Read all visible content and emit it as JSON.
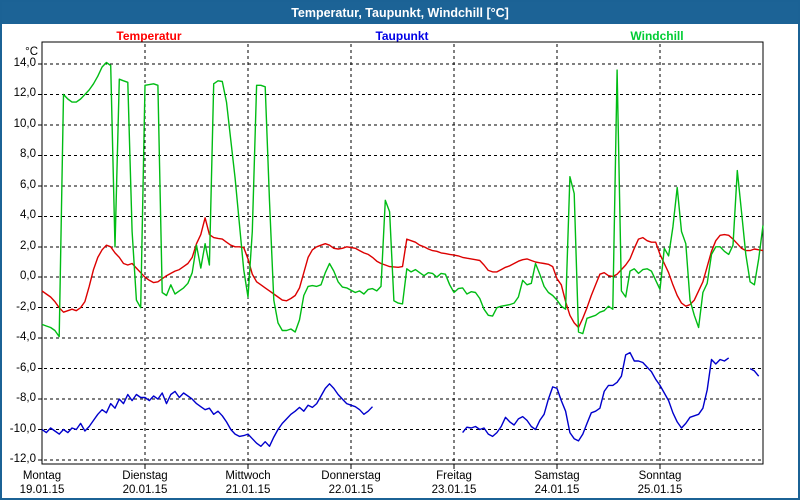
{
  "window": {
    "title": "Temperatur, Taupunkt, Windchill [°C]"
  },
  "legend": [
    {
      "label": "Temperatur",
      "color": "#ff0000"
    },
    {
      "label": "Taupunkt",
      "color": "#0000e6"
    },
    {
      "label": "Windchill",
      "color": "#00cc33"
    }
  ],
  "axes": {
    "y_unit": "°C",
    "y_tick_labels": [
      "14,0",
      "12,0",
      "10,0",
      "8,0",
      "6,0",
      "4,0",
      "2,0",
      "0,0",
      "-2,0",
      "-4,0",
      "-6,0",
      "-8,0",
      "-10,0",
      "-12,0"
    ],
    "x_days": [
      {
        "name": "Montag",
        "date": "19.01.15"
      },
      {
        "name": "Dienstag",
        "date": "20.01.15"
      },
      {
        "name": "Mittwoch",
        "date": "21.01.15"
      },
      {
        "name": "Donnerstag",
        "date": "22.01.15"
      },
      {
        "name": "Freitag",
        "date": "23.01.15"
      },
      {
        "name": "Samstag",
        "date": "24.01.15"
      },
      {
        "name": "Sonntag",
        "date": "25.01.15"
      }
    ]
  },
  "chart_data": {
    "type": "line",
    "title": "Temperatur, Taupunkt, Windchill [°C]",
    "x_unit": "hours since Montag 19.01.15 00:00",
    "x_range": [
      0,
      168
    ],
    "ylim": [
      -12.3,
      15.4
    ],
    "y_ticks": [
      14,
      12,
      10,
      8,
      6,
      4,
      2,
      0,
      -2,
      -4,
      -6,
      -8,
      -10,
      -12
    ],
    "grid": "dashed",
    "legend_position": "top",
    "series": [
      {
        "name": "Temperatur",
        "color": "#dc0000",
        "values": [
          -0.9,
          -1.1,
          -1.3,
          -1.6,
          -2.0,
          -2.3,
          -2.2,
          -2.1,
          -2.2,
          -2.0,
          -1.6,
          -0.6,
          0.5,
          1.3,
          1.8,
          2.1,
          2.0,
          1.6,
          1.3,
          0.9,
          0.8,
          0.9,
          0.6,
          0.3,
          0.0,
          -0.2,
          -0.35,
          -0.3,
          -0.1,
          0.1,
          0.25,
          0.4,
          0.5,
          0.7,
          0.9,
          1.3,
          2.2,
          2.8,
          3.9,
          2.8,
          2.6,
          2.55,
          2.5,
          2.3,
          2.1,
          2.0,
          2.0,
          1.95,
          1.2,
          0.2,
          -0.3,
          -0.5,
          -0.7,
          -0.9,
          -1.1,
          -1.3,
          -1.5,
          -1.55,
          -1.4,
          -1.2,
          -0.7,
          0.3,
          1.3,
          1.8,
          2.0,
          2.1,
          2.2,
          2.1,
          1.9,
          1.85,
          1.9,
          2.0,
          1.95,
          1.9,
          1.75,
          1.6,
          1.5,
          1.3,
          1.05,
          0.9,
          0.8,
          0.7,
          0.68,
          0.65,
          0.7,
          2.5,
          2.4,
          2.3,
          2.1,
          2.0,
          1.85,
          1.75,
          1.7,
          1.6,
          1.55,
          1.5,
          1.45,
          1.4,
          1.3,
          1.25,
          1.2,
          1.15,
          1.1,
          0.8,
          0.45,
          0.35,
          0.35,
          0.5,
          0.65,
          0.75,
          0.9,
          1.05,
          1.15,
          1.2,
          1.1,
          1.0,
          0.95,
          0.9,
          0.85,
          0.7,
          -0.1,
          -0.5,
          -1.6,
          -2.5,
          -3.0,
          -3.3,
          -2.7,
          -2.0,
          -1.2,
          -0.5,
          0.2,
          0.3,
          0.1,
          0.05,
          0.2,
          0.5,
          0.8,
          1.2,
          1.9,
          2.5,
          2.6,
          2.4,
          2.3,
          2.3,
          1.5,
          0.9,
          0.3,
          -0.5,
          -1.2,
          -1.7,
          -1.9,
          -1.8,
          -1.5,
          -0.9,
          -0.3,
          0.7,
          1.7,
          2.4,
          2.75,
          2.8,
          2.75,
          2.5,
          2.2,
          1.9,
          1.75,
          1.75,
          1.85,
          1.8,
          1.75
        ]
      },
      {
        "name": "Taupunkt",
        "color": "#0000cc",
        "values": [
          -10.0,
          -10.2,
          -9.9,
          -10.1,
          -10.3,
          -10.0,
          -10.2,
          -9.9,
          -10.0,
          -9.6,
          -10.1,
          -9.8,
          -9.4,
          -9.0,
          -8.7,
          -8.9,
          -8.3,
          -8.6,
          -8.0,
          -8.3,
          -7.7,
          -8.1,
          -7.7,
          -7.9,
          -7.9,
          -8.1,
          -7.8,
          -8.0,
          -7.6,
          -8.3,
          -7.7,
          -7.5,
          -7.9,
          -7.6,
          -7.8,
          -8.0,
          -8.3,
          -8.5,
          -8.7,
          -8.6,
          -9.0,
          -8.8,
          -9.1,
          -9.5,
          -10.0,
          -10.3,
          -10.45,
          -10.4,
          -10.3,
          -10.6,
          -10.9,
          -11.1,
          -10.8,
          -11.1,
          -10.5,
          -10.0,
          -9.6,
          -9.3,
          -9.0,
          -8.8,
          -8.55,
          -8.8,
          -8.4,
          -8.55,
          -8.3,
          -7.8,
          -7.3,
          -7.0,
          -7.3,
          -7.7,
          -8.0,
          -8.3,
          -8.4,
          -8.5,
          -8.7,
          -9.0,
          -8.8,
          -8.5,
          null,
          null,
          null,
          null,
          null,
          null,
          null,
          null,
          null,
          null,
          null,
          null,
          null,
          null,
          null,
          null,
          null,
          null,
          null,
          null,
          -10.2,
          -9.85,
          -9.9,
          -9.8,
          -10.0,
          -9.9,
          -10.3,
          -10.45,
          -10.2,
          -9.8,
          -9.2,
          -9.5,
          -9.7,
          -9.3,
          -9.15,
          -9.4,
          -9.8,
          -10.0,
          -9.4,
          -9.0,
          -8.0,
          -7.2,
          -7.3,
          -8.1,
          -8.8,
          -10.2,
          -10.6,
          -10.75,
          -10.3,
          -9.6,
          -8.9,
          -8.8,
          -8.6,
          -7.5,
          -7.1,
          -7.1,
          -6.9,
          -6.5,
          -5.1,
          -4.95,
          -5.5,
          -5.5,
          -5.6,
          -5.9,
          -6.2,
          -6.7,
          -7.1,
          -7.6,
          -8.1,
          -8.9,
          -9.5,
          -9.9,
          -9.6,
          -9.2,
          -9.1,
          -9.0,
          -8.6,
          -7.4,
          -5.4,
          -5.7,
          -5.4,
          -5.5,
          -5.3,
          null,
          null,
          null,
          null,
          -6.0,
          -6.15,
          -6.5,
          null
        ]
      },
      {
        "name": "Windchill",
        "color": "#00bc14",
        "values": [
          -3.1,
          -3.2,
          -3.3,
          -3.5,
          -3.9,
          12.0,
          11.7,
          11.5,
          11.5,
          11.7,
          12.0,
          12.3,
          12.7,
          13.2,
          13.8,
          14.1,
          13.9,
          2.0,
          13.0,
          12.9,
          12.8,
          3.0,
          -1.5,
          -2.0,
          12.6,
          12.65,
          12.7,
          12.6,
          -1.0,
          -1.2,
          -0.5,
          -1.1,
          -0.9,
          -0.7,
          -0.4,
          0.3,
          2.1,
          0.6,
          2.2,
          0.8,
          12.7,
          12.9,
          12.85,
          11.5,
          9.0,
          6.5,
          3.5,
          0.5,
          -1.3,
          3.0,
          12.6,
          12.6,
          12.5,
          5.0,
          -1.5,
          -3.0,
          -3.5,
          -3.5,
          -3.4,
          -3.6,
          -2.8,
          -1.2,
          -0.6,
          -0.55,
          -0.6,
          -0.5,
          0.3,
          0.9,
          0.4,
          -0.3,
          -0.65,
          -0.7,
          -0.85,
          -1.0,
          -0.9,
          -1.1,
          -0.8,
          -0.75,
          -0.9,
          -0.6,
          5.05,
          4.3,
          -1.55,
          -1.7,
          -1.75,
          0.55,
          0.35,
          0.5,
          0.3,
          0.1,
          0.3,
          0.25,
          0.0,
          0.25,
          0.2,
          -0.5,
          -1.0,
          -0.75,
          -0.7,
          -1.1,
          -0.95,
          -1.0,
          -1.4,
          -2.1,
          -2.5,
          -2.55,
          -2.0,
          -1.9,
          -1.85,
          -1.8,
          -1.7,
          -1.3,
          -0.2,
          -0.5,
          -0.4,
          0.9,
          0.2,
          -0.6,
          -1.0,
          -1.2,
          -1.5,
          -1.9,
          -2.1,
          6.6,
          5.5,
          -3.6,
          -3.7,
          -2.7,
          -2.6,
          -2.5,
          -2.3,
          -2.2,
          -1.9,
          -2.1,
          13.6,
          -0.9,
          -1.3,
          0.4,
          0.55,
          0.25,
          0.5,
          0.55,
          0.4,
          -0.2,
          -0.8,
          1.9,
          1.4,
          3.3,
          5.9,
          3.0,
          2.2,
          -1.5,
          -2.5,
          -3.3,
          -1.0,
          -0.4,
          1.5,
          2.0,
          2.0,
          1.7,
          1.5,
          2.1,
          7.0,
          4.3,
          1.5,
          -0.3,
          -0.5,
          1.2,
          3.4
        ]
      }
    ]
  }
}
